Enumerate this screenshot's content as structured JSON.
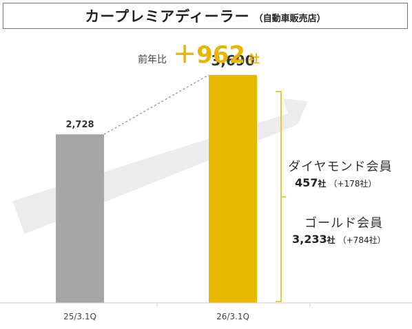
{
  "title": {
    "main": "カープレミアディーラー",
    "sub": "（自動車販売店）"
  },
  "yoy": {
    "label": "前年比",
    "value": "＋962",
    "unit": "社"
  },
  "chart_data": {
    "type": "bar",
    "categories": [
      "25/3.1Q",
      "26/3.1Q"
    ],
    "values": [
      2728,
      3690
    ],
    "value_labels": [
      "2,728",
      "3,690"
    ],
    "ylim": [
      0,
      3900
    ],
    "grid": false,
    "colors": [
      "#a6a6a6",
      "#e6b800"
    ],
    "breakdown": [
      {
        "name": "ダイヤモンド会員",
        "value": "457",
        "unit": "社",
        "delta": "（+178社）"
      },
      {
        "name": "ゴールド会員",
        "value": "3,233",
        "unit": "社",
        "delta": "（+784社）"
      }
    ]
  },
  "colors": {
    "accent": "#e6b800",
    "bar_prev": "#a6a6a6",
    "arrow": "#ececec",
    "bracket": "#e6b800"
  }
}
